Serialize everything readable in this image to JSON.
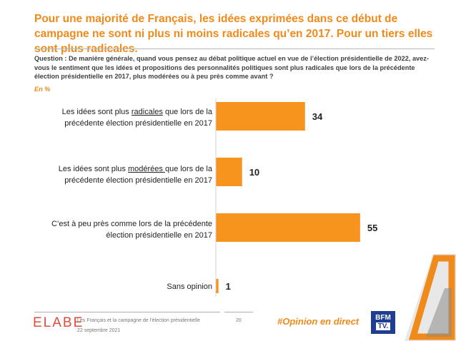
{
  "title": "Pour une majorité de Français, les idées exprimées dans ce début de campagne ne sont ni plus ni moins radicales qu’en 2017. Pour un tiers elles sont plus radicales.",
  "question": "Question : De manière générale, quand vous pensez au débat politique actuel en vue de l’élection présidentielle de 2022, avez-vous le sentiment que les idées et propositions des personnalités politiques sont plus radicales que lors de la précédente élection présidentielle en 2017, plus modérées ou à peu près comme avant ?",
  "unit_note": "En %",
  "labels": {
    "radicales_pre": "Les idées sont plus ",
    "radicales_u": "radicales",
    "radicales_post": " que lors de la précédente élection présidentielle en 2017",
    "moderees_pre": "Les idées sont plus ",
    "moderees_u": "modérées ",
    "moderees_post": "que lors de la précédente élection présidentielle en 2017",
    "comme_avant": "C’est à peu près comme lors de la précédente élection présidentielle en 2017",
    "sans_opinion": "Sans opinion"
  },
  "chart_data": {
    "type": "bar",
    "orientation": "horizontal",
    "categories": [
      "Les idées sont plus radicales que lors de la précédente élection présidentielle en 2017",
      "Les idées sont plus modérées que lors de la précédente élection présidentielle en 2017",
      "C’est à peu près comme lors de la précédente élection présidentielle en 2017",
      "Sans opinion"
    ],
    "values": [
      34,
      10,
      55,
      1
    ],
    "xlim": [
      0,
      100
    ],
    "grid": false,
    "legend": "none",
    "color": "#f7941d"
  },
  "footer": {
    "logo": "ELABE",
    "source": "Les Français et la campagne de l’élection présidentielle",
    "date": "22 septembre 2021",
    "page": "20",
    "hashtag": "#Opinion en direct",
    "brand_line1": "BFM",
    "brand_line2": "TV."
  },
  "colors": {
    "accent": "#ef8a1b",
    "bar": "#f7941d",
    "brand": "#1f3e93"
  }
}
